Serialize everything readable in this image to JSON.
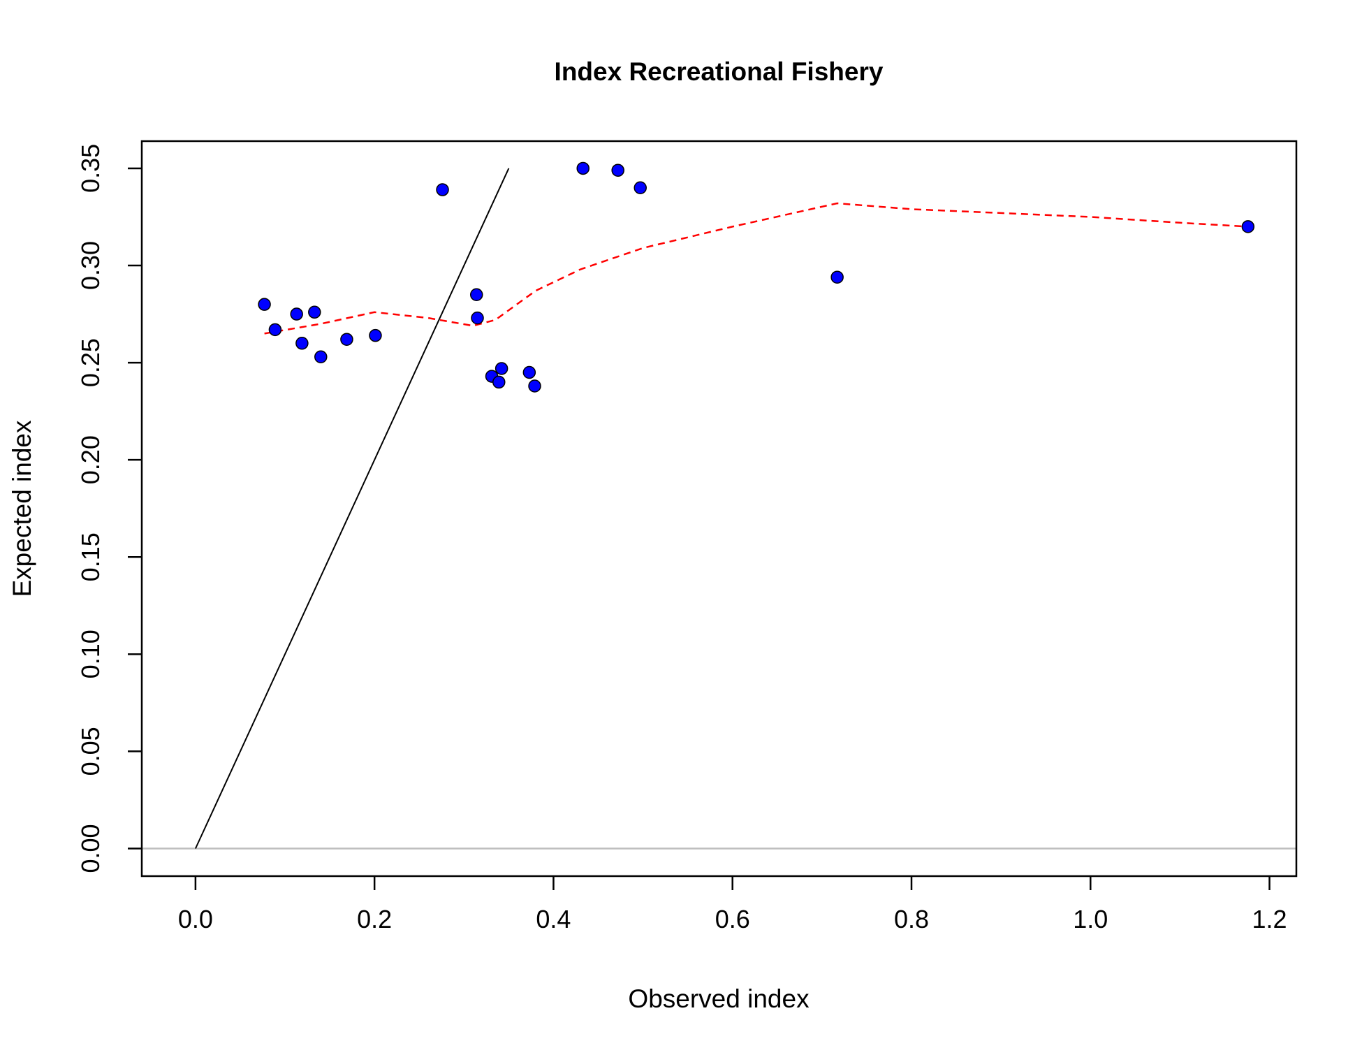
{
  "chart_data": {
    "type": "scatter",
    "title": "Index Recreational Fishery",
    "xlabel": "Observed index",
    "ylabel": "Expected index",
    "xlim": [
      -0.06,
      1.23
    ],
    "ylim": [
      -0.0142,
      0.364
    ],
    "x_ticks": [
      0.0,
      0.2,
      0.4,
      0.6,
      0.8,
      1.0,
      1.2
    ],
    "x_tick_labels": [
      "0.0",
      "0.2",
      "0.4",
      "0.6",
      "0.8",
      "1.0",
      "1.2"
    ],
    "y_ticks": [
      0.0,
      0.05,
      0.1,
      0.15,
      0.2,
      0.25,
      0.3,
      0.35
    ],
    "y_tick_labels": [
      "0.00",
      "0.05",
      "0.10",
      "0.15",
      "0.20",
      "0.25",
      "0.30",
      "0.35"
    ],
    "grid": false,
    "legend": "none",
    "series": [
      {
        "type": "points",
        "color": "#0000ff",
        "stroke": "#000000",
        "x": [
          0.077,
          0.089,
          0.113,
          0.119,
          0.133,
          0.14,
          0.169,
          0.201,
          0.276,
          0.314,
          0.315,
          0.331,
          0.339,
          0.342,
          0.373,
          0.379,
          0.433,
          0.472,
          0.497,
          0.717,
          1.176
        ],
        "y": [
          0.28,
          0.267,
          0.275,
          0.26,
          0.276,
          0.253,
          0.262,
          0.264,
          0.339,
          0.285,
          0.273,
          0.243,
          0.24,
          0.247,
          0.245,
          0.238,
          0.35,
          0.349,
          0.34,
          0.294,
          0.32
        ]
      },
      {
        "type": "line",
        "style": "solid",
        "color": "#000000",
        "x": [
          0.0,
          0.35
        ],
        "y": [
          0.0,
          0.35
        ]
      },
      {
        "type": "line",
        "style": "dashed",
        "color": "#ff0000",
        "x": [
          0.077,
          0.14,
          0.2,
          0.26,
          0.31,
          0.335,
          0.38,
          0.43,
          0.5,
          0.6,
          0.717,
          0.8,
          0.9,
          1.0,
          1.1,
          1.176
        ],
        "y": [
          0.265,
          0.27,
          0.276,
          0.273,
          0.269,
          0.272,
          0.287,
          0.298,
          0.309,
          0.32,
          0.332,
          0.329,
          0.327,
          0.325,
          0.322,
          0.32
        ]
      },
      {
        "type": "hline",
        "color": "#bebebe",
        "y": 0.0
      }
    ]
  }
}
